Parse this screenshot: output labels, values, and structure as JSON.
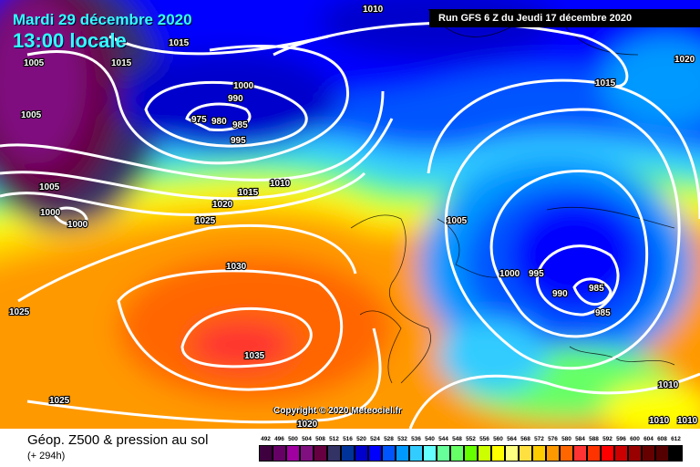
{
  "header": {
    "date": "Mardi 29 décembre 2020",
    "time": "13:00 locale",
    "run": "Run GFS 6 Z du Jeudi 17 décembre 2020"
  },
  "copyright": "Copyright © 2020 Meteociel.fr",
  "legend": {
    "title": "Géop. Z500 & pression au sol",
    "lead": "(+ 294h)",
    "scale": [
      {
        "v": "492",
        "c": "#3f0040"
      },
      {
        "v": "496",
        "c": "#660066"
      },
      {
        "v": "500",
        "c": "#a000a0"
      },
      {
        "v": "504",
        "c": "#801080"
      },
      {
        "v": "508",
        "c": "#660040"
      },
      {
        "v": "512",
        "c": "#333366"
      },
      {
        "v": "516",
        "c": "#003399"
      },
      {
        "v": "520",
        "c": "#0000cc"
      },
      {
        "v": "524",
        "c": "#0000ff"
      },
      {
        "v": "528",
        "c": "#0055ff"
      },
      {
        "v": "532",
        "c": "#0099ff"
      },
      {
        "v": "536",
        "c": "#33ccff"
      },
      {
        "v": "540",
        "c": "#66ffff"
      },
      {
        "v": "544",
        "c": "#66ff99"
      },
      {
        "v": "548",
        "c": "#66ff66"
      },
      {
        "v": "552",
        "c": "#66ff00"
      },
      {
        "v": "556",
        "c": "#ccff00"
      },
      {
        "v": "560",
        "c": "#ffff00"
      },
      {
        "v": "564",
        "c": "#ffff80"
      },
      {
        "v": "568",
        "c": "#ffe040"
      },
      {
        "v": "572",
        "c": "#ffcc00"
      },
      {
        "v": "576",
        "c": "#ff9900"
      },
      {
        "v": "580",
        "c": "#ff6600"
      },
      {
        "v": "584",
        "c": "#ff3333"
      },
      {
        "v": "588",
        "c": "#ff3300"
      },
      {
        "v": "592",
        "c": "#ff0000"
      },
      {
        "v": "596",
        "c": "#cc0000"
      },
      {
        "v": "600",
        "c": "#990000"
      },
      {
        "v": "604",
        "c": "#660000"
      },
      {
        "v": "608",
        "c": "#550000"
      },
      {
        "v": "612",
        "c": "#000000"
      }
    ]
  },
  "isobar_labels": [
    "1010",
    "1015",
    "1015",
    "1005",
    "1005",
    "1000",
    "990",
    "975",
    "980",
    "985",
    "995",
    "1015",
    "1020",
    "1010",
    "1015",
    "1020",
    "1025",
    "1005",
    "1000",
    "1000",
    "1005",
    "1030",
    "1000",
    "995",
    "990",
    "985",
    "985",
    "1025",
    "1035",
    "1025",
    "1020",
    "1010",
    "1010",
    "1010"
  ]
}
